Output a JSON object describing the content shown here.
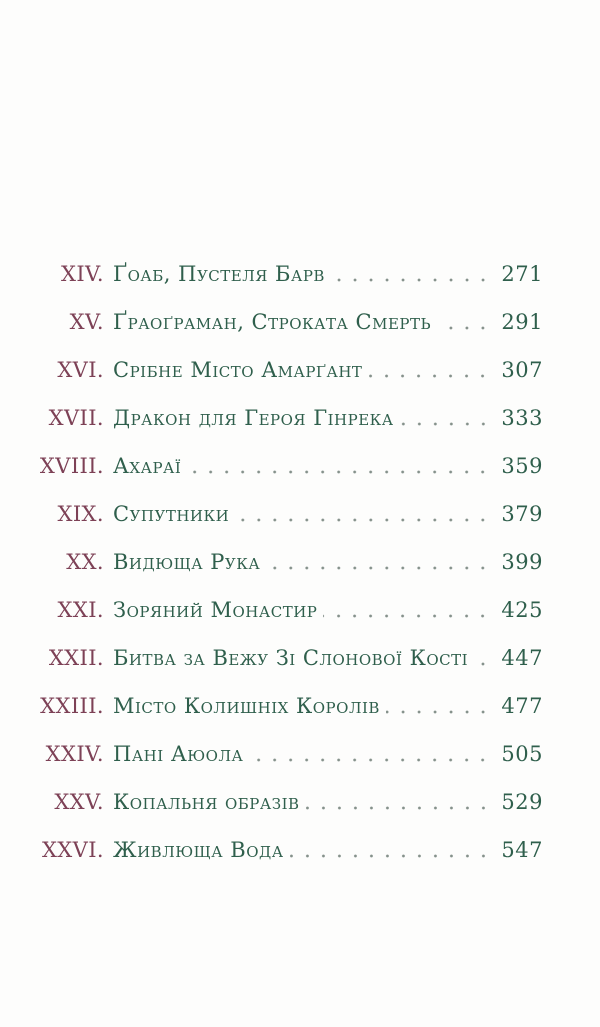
{
  "document": {
    "kind": "book-table-of-contents",
    "language": "uk",
    "colors": {
      "background": "#fdfdfc",
      "numeral": "#7d4156",
      "title": "#2f5f4c",
      "page_number": "#2f5f4c",
      "dot_leader": "#85918b"
    }
  },
  "toc": {
    "entries": [
      {
        "numeral": "XIV.",
        "title": "Ґоаб, Пустеля Барв",
        "page": "271"
      },
      {
        "numeral": "XV.",
        "title": "Ґраоґраман, Строката Смерть",
        "page": "291"
      },
      {
        "numeral": "XVI.",
        "title": "Срібне Місто Амарґант",
        "page": "307"
      },
      {
        "numeral": "XVII.",
        "title": "Дракон для Героя Гінрека",
        "page": "333"
      },
      {
        "numeral": "XVIII.",
        "title": "Ахараї",
        "page": "359"
      },
      {
        "numeral": "XIX.",
        "title": "Супутники",
        "page": "379"
      },
      {
        "numeral": "XX.",
        "title": "Видюща Рука",
        "page": "399"
      },
      {
        "numeral": "XXI.",
        "title": "Зоряний Монастир",
        "page": "425"
      },
      {
        "numeral": "XXII.",
        "title": "Битва за Вежу Зі Слонової Кості",
        "page": "447"
      },
      {
        "numeral": "XXIII.",
        "title": "Місто Колишніх Королів",
        "page": "477"
      },
      {
        "numeral": "XXIV.",
        "title": "Пані Аюола",
        "page": "505"
      },
      {
        "numeral": "XXV.",
        "title": "Копальня образів",
        "page": "529"
      },
      {
        "numeral": "XXVI.",
        "title": "Живлюща Вода",
        "page": "547"
      }
    ]
  }
}
